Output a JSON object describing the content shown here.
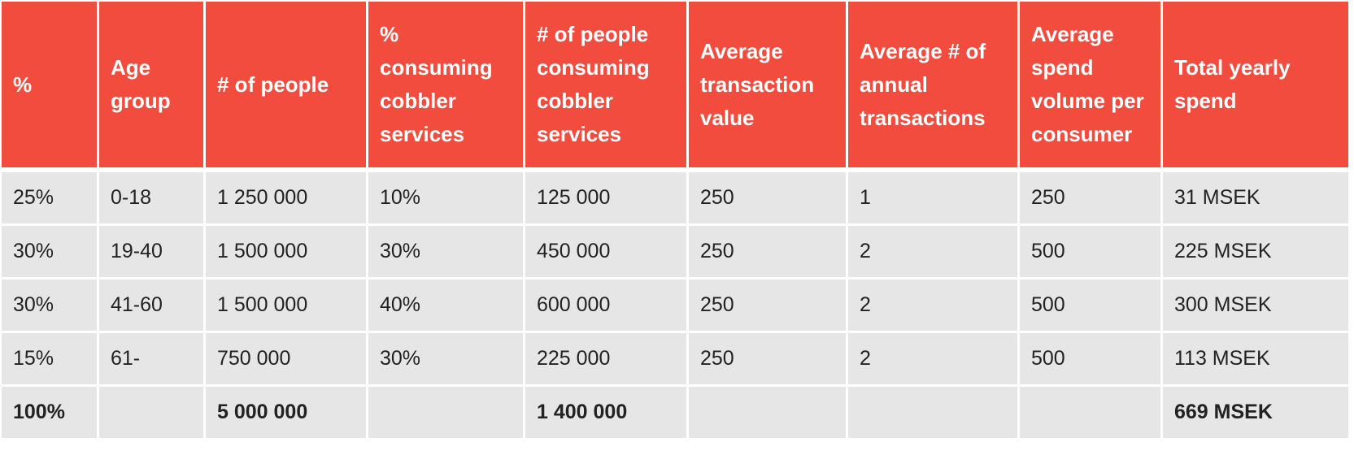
{
  "headers": [
    "%",
    "Age group",
    "# of people",
    "% consuming cobbler services",
    "# of people consuming cobbler services",
    "Average transaction value",
    "Average # of annual transactions",
    "Average spend volume per consumer",
    "Total yearly spend"
  ],
  "rows": [
    [
      "25%",
      "0-18",
      "1 250 000",
      "10%",
      "125 000",
      "250",
      "1",
      "250",
      "31 MSEK"
    ],
    [
      "30%",
      "19-40",
      "1 500 000",
      "30%",
      "450 000",
      "250",
      "2",
      "500",
      "225 MSEK"
    ],
    [
      "30%",
      "41-60",
      "1 500 000",
      "40%",
      "600 000",
      "250",
      "2",
      "500",
      "300 MSEK"
    ],
    [
      "15%",
      "61-",
      "750 000",
      "30%",
      "225 000",
      "250",
      "2",
      "500",
      "113 MSEK"
    ]
  ],
  "total": [
    "100%",
    "",
    "5 000 000",
    "",
    "1 400 000",
    "",
    "",
    "",
    "669 MSEK"
  ],
  "colors": {
    "header_bg": "#f24c3e",
    "cell_bg": "#e6e6e6"
  }
}
